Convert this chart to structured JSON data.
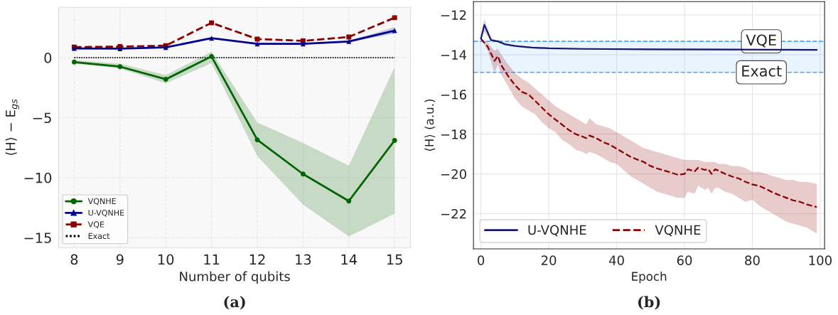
{
  "chart_data": [
    {
      "type": "line",
      "xlabel": "Number of qubits",
      "ylabel": "⟨H⟩ − E$_{gs}$",
      "annotations": [
        "(a)"
      ],
      "x": [
        8,
        9,
        10,
        11,
        12,
        13,
        14,
        15
      ],
      "xlim": [
        7.66,
        15.35
      ],
      "ylim": [
        -15.83,
        4.2
      ],
      "xticks": [
        8,
        9,
        10,
        11,
        12,
        13,
        14,
        15
      ],
      "yticks": [
        -15,
        -10,
        -5,
        0
      ],
      "grid": true,
      "legend": "bottom left",
      "series": [
        {
          "name": "VQNHE",
          "color": "#006400",
          "marker": "circle",
          "line_style": "solid",
          "values": [
            -0.37,
            -0.75,
            -1.8,
            0.1,
            -6.85,
            -9.7,
            -11.95,
            -6.9
          ],
          "lower": [
            -0.5,
            -0.9,
            -2.15,
            -0.45,
            -8.2,
            -12.25,
            -14.9,
            -13.0
          ],
          "upper": [
            -0.2,
            -0.5,
            -1.45,
            0.5,
            -5.4,
            -7.1,
            -9.0,
            -0.8
          ]
        },
        {
          "name": "U-VQNHE",
          "color": "#00008b",
          "marker": "triangle",
          "line_style": "solid",
          "values": [
            0.77,
            0.75,
            0.85,
            1.62,
            1.15,
            1.15,
            1.35,
            2.25
          ],
          "lower": [
            0.72,
            0.7,
            0.8,
            1.57,
            1.1,
            1.1,
            1.3,
            2.0
          ],
          "upper": [
            0.82,
            0.8,
            0.9,
            1.67,
            1.2,
            1.2,
            1.4,
            2.55
          ]
        },
        {
          "name": "VQE",
          "color": "#8b0000",
          "marker": "square",
          "line_style": "dashed",
          "values": [
            0.88,
            0.92,
            1.0,
            2.9,
            1.55,
            1.4,
            1.72,
            3.33
          ]
        },
        {
          "name": "Exact",
          "color": "#000000",
          "marker": "none",
          "line_style": "dotted",
          "values": [
            0,
            0,
            0,
            0,
            0,
            0,
            0,
            0
          ]
        }
      ]
    },
    {
      "type": "line",
      "xlabel": "Epoch",
      "ylabel": "⟨H⟩ (a.u.)",
      "annotations": [
        "(b)"
      ],
      "xlim": [
        -2.2,
        101.3
      ],
      "ylim": [
        -23.77,
        -11.33
      ],
      "xticks": [
        0,
        20,
        40,
        60,
        80,
        100
      ],
      "yticks": [
        -22,
        -20,
        -18,
        -16,
        -14,
        -12
      ],
      "grid": true,
      "legend": "bottom left",
      "ref_lines": [
        {
          "axis": "y",
          "value": -13.33,
          "label": "VQE",
          "color": "#1e90ff",
          "line_style": "dashed"
        },
        {
          "axis": "y",
          "value": -14.89,
          "label": "Exact",
          "color": "#1e90ff",
          "line_style": "dashed"
        }
      ],
      "bands": [
        {
          "axis": "y",
          "from": -14.89,
          "to": -13.33,
          "color": "#1e90ff"
        }
      ],
      "series": [
        {
          "name": "U-VQNHE",
          "color": "#191970",
          "line_style": "solid",
          "x": [
            0,
            1,
            3,
            5,
            7,
            10,
            15,
            20,
            30,
            50,
            99
          ],
          "values": [
            -13.2,
            -12.5,
            -13.27,
            -13.33,
            -13.47,
            -13.56,
            -13.64,
            -13.68,
            -13.71,
            -13.73,
            -13.76
          ],
          "upper": [
            -13.2,
            -12.2,
            -13.2,
            -13.28,
            -13.42,
            -13.52,
            -13.6,
            -13.64,
            -13.67,
            -13.69,
            -13.72
          ],
          "lower": [
            -13.2,
            -12.85,
            -13.33,
            -13.38,
            -13.52,
            -13.6,
            -13.68,
            -13.72,
            -13.75,
            -13.77,
            -13.8
          ]
        },
        {
          "name": "VQNHE",
          "color": "#8b0000",
          "line_style": "dashed",
          "x": [
            0,
            2,
            4,
            5,
            6,
            8,
            10,
            12,
            14,
            16,
            18,
            20,
            22,
            24,
            26,
            28,
            30,
            31,
            32,
            34,
            36,
            38,
            40,
            42,
            44,
            46,
            48,
            50,
            52,
            54,
            56,
            58,
            60,
            61,
            63,
            64,
            66,
            67,
            68,
            69,
            70,
            72,
            74,
            76,
            78,
            80,
            82,
            84,
            86,
            88,
            90,
            92,
            94,
            96,
            99
          ],
          "values": [
            -13.2,
            -13.6,
            -14.31,
            -14.07,
            -14.53,
            -15.07,
            -15.53,
            -15.87,
            -16.0,
            -16.33,
            -16.67,
            -17.0,
            -17.27,
            -17.53,
            -17.8,
            -18.0,
            -18.13,
            -18.2,
            -18.07,
            -18.2,
            -18.4,
            -18.53,
            -18.73,
            -18.93,
            -19.13,
            -19.27,
            -19.4,
            -19.6,
            -19.73,
            -19.83,
            -19.93,
            -20.04,
            -20.0,
            -19.77,
            -19.87,
            -19.69,
            -19.8,
            -19.76,
            -20.0,
            -19.77,
            -19.83,
            -20.0,
            -20.13,
            -20.23,
            -20.4,
            -20.53,
            -20.6,
            -20.76,
            -20.93,
            -21.07,
            -21.2,
            -21.33,
            -21.4,
            -21.53,
            -21.67
          ],
          "upper": [
            -13.2,
            -13.4,
            -13.8,
            -13.7,
            -14.0,
            -14.5,
            -14.9,
            -15.2,
            -15.4,
            -15.7,
            -16.0,
            -16.3,
            -16.6,
            -16.8,
            -17.0,
            -17.2,
            -17.4,
            -17.5,
            -17.2,
            -17.5,
            -17.6,
            -17.7,
            -17.9,
            -18.1,
            -18.3,
            -18.5,
            -18.7,
            -18.8,
            -18.9,
            -19.0,
            -19.1,
            -19.2,
            -19.3,
            -19.3,
            -19.3,
            -19.3,
            -19.4,
            -19.4,
            -19.4,
            -19.4,
            -19.5,
            -19.5,
            -19.6,
            -19.6,
            -19.7,
            -19.9,
            -19.9,
            -20.0,
            -20.1,
            -20.2,
            -20.3,
            -20.3,
            -20.4,
            -20.4,
            -20.5
          ],
          "lower": [
            -13.2,
            -13.8,
            -14.9,
            -14.5,
            -15.0,
            -15.6,
            -16.2,
            -16.6,
            -16.8,
            -17.0,
            -17.4,
            -17.7,
            -17.9,
            -18.3,
            -18.5,
            -18.8,
            -18.9,
            -19.0,
            -18.9,
            -19.0,
            -19.2,
            -19.4,
            -19.5,
            -19.8,
            -20.1,
            -20.3,
            -20.5,
            -20.7,
            -20.9,
            -21.0,
            -21.1,
            -21.2,
            -21.2,
            -20.9,
            -21.0,
            -20.6,
            -20.8,
            -20.7,
            -21.0,
            -20.7,
            -20.7,
            -20.9,
            -21.0,
            -21.2,
            -21.4,
            -21.3,
            -21.6,
            -21.8,
            -22.0,
            -22.2,
            -22.4,
            -22.5,
            -22.6,
            -22.7,
            -23.0
          ]
        }
      ]
    }
  ]
}
